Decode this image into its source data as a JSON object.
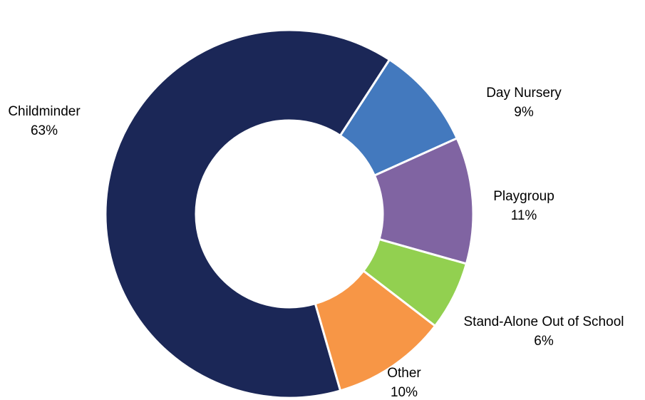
{
  "chart_data": {
    "type": "pie",
    "donut": true,
    "categories": [
      "Day Nursery",
      "Playgroup",
      "Stand-Alone Out of School",
      "Other",
      "Childminder"
    ],
    "values": [
      9,
      11,
      6,
      10,
      63
    ],
    "value_labels": [
      "9%",
      "11%",
      "6%",
      "10%",
      "63%"
    ],
    "colors": [
      "#4379be",
      "#8064a2",
      "#92d050",
      "#f79646",
      "#1b2757"
    ]
  }
}
